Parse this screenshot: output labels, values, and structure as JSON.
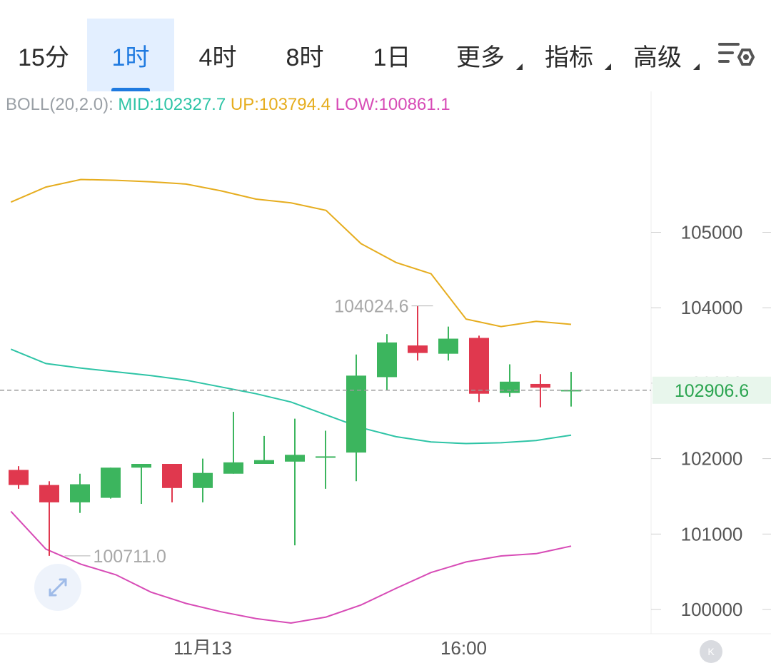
{
  "tabs": [
    {
      "label": "15分",
      "active": false,
      "dropdown": false
    },
    {
      "label": "1时",
      "active": true,
      "dropdown": false
    },
    {
      "label": "4时",
      "active": false,
      "dropdown": false
    },
    {
      "label": "8时",
      "active": false,
      "dropdown": false
    },
    {
      "label": "1日",
      "active": false,
      "dropdown": false
    },
    {
      "label": "更多",
      "active": false,
      "dropdown": true
    },
    {
      "label": "指标",
      "active": false,
      "dropdown": true
    },
    {
      "label": "高级",
      "active": false,
      "dropdown": true
    }
  ],
  "settings_icon": "chart-settings-icon",
  "indicator": {
    "name": "BOLL(20,2.0):",
    "mid": "MID:102327.7",
    "up": "UP:103794.4",
    "low": "LOW:100861.1"
  },
  "expand_icon": "expand-icon",
  "logo_badge": "K",
  "colors": {
    "up": "#3cb55e",
    "down": "#e0384e",
    "upper_band": "#e6ad1f",
    "mid_band": "#2ec4a6",
    "lower_band": "#d74bb6",
    "accent": "#1f7ae0",
    "current_price_bg": "#e8f6ec",
    "current_price_text": "#2aa44f"
  },
  "chart_data": {
    "type": "candlestick",
    "ylim": [
      99700,
      107200
    ],
    "y_ticks": [
      100000,
      101000,
      102000,
      103000,
      104000,
      105000
    ],
    "y_tick_labels": [
      "100000",
      "101000",
      "102000",
      "103000",
      "104000",
      "105000"
    ],
    "x_ticks": [
      {
        "index": 6,
        "label": "11月13"
      },
      {
        "index": 14.5,
        "label": "16:00"
      }
    ],
    "current_price": 102906.6,
    "current_price_label": "102906.6",
    "high_label": {
      "index": 13.5,
      "value": 104024.6,
      "text": "104024.6"
    },
    "low_label": {
      "index": 1.5,
      "value": 100711.0,
      "text": "100711.0"
    },
    "candles": [
      {
        "o": 101850,
        "h": 101900,
        "l": 101600,
        "c": 101650
      },
      {
        "o": 101650,
        "h": 101700,
        "l": 100711,
        "c": 101420
      },
      {
        "o": 101420,
        "h": 101800,
        "l": 101280,
        "c": 101660
      },
      {
        "o": 101480,
        "h": 101880,
        "l": 101470,
        "c": 101880
      },
      {
        "o": 101880,
        "h": 101920,
        "l": 101400,
        "c": 101930
      },
      {
        "o": 101930,
        "h": 101930,
        "l": 101420,
        "c": 101610
      },
      {
        "o": 101610,
        "h": 102000,
        "l": 101420,
        "c": 101810
      },
      {
        "o": 101800,
        "h": 102620,
        "l": 101800,
        "c": 101950
      },
      {
        "o": 101930,
        "h": 102300,
        "l": 101930,
        "c": 101980
      },
      {
        "o": 101960,
        "h": 102530,
        "l": 100850,
        "c": 102050
      },
      {
        "o": 102020,
        "h": 102370,
        "l": 101600,
        "c": 102030
      },
      {
        "o": 102080,
        "h": 103380,
        "l": 101700,
        "c": 103100
      },
      {
        "o": 103080,
        "h": 103650,
        "l": 102900,
        "c": 103540
      },
      {
        "o": 103500,
        "h": 104024.6,
        "l": 103300,
        "c": 103400
      },
      {
        "o": 103390,
        "h": 103750,
        "l": 103300,
        "c": 103590
      },
      {
        "o": 103600,
        "h": 103630,
        "l": 102750,
        "c": 102860
      },
      {
        "o": 102870,
        "h": 103250,
        "l": 102820,
        "c": 103020
      },
      {
        "o": 102990,
        "h": 103120,
        "l": 102680,
        "c": 102940
      },
      {
        "o": 102900,
        "h": 103150,
        "l": 102690,
        "c": 102910
      }
    ],
    "bands": {
      "upper": [
        105400,
        105600,
        105700,
        105690,
        105670,
        105640,
        105550,
        105440,
        105390,
        105290,
        104850,
        104600,
        104450,
        103850,
        103750,
        103820,
        103780
      ],
      "middle": [
        103450,
        103260,
        103200,
        103150,
        103100,
        103040,
        102950,
        102860,
        102750,
        102580,
        102410,
        102290,
        102220,
        102200,
        102210,
        102240,
        102310
      ],
      "lower": [
        101300,
        100800,
        100600,
        100460,
        100230,
        100080,
        99970,
        99880,
        99820,
        99900,
        100060,
        100280,
        100490,
        100630,
        100710,
        100740,
        100840
      ]
    },
    "band_start_index": -0.25
  }
}
